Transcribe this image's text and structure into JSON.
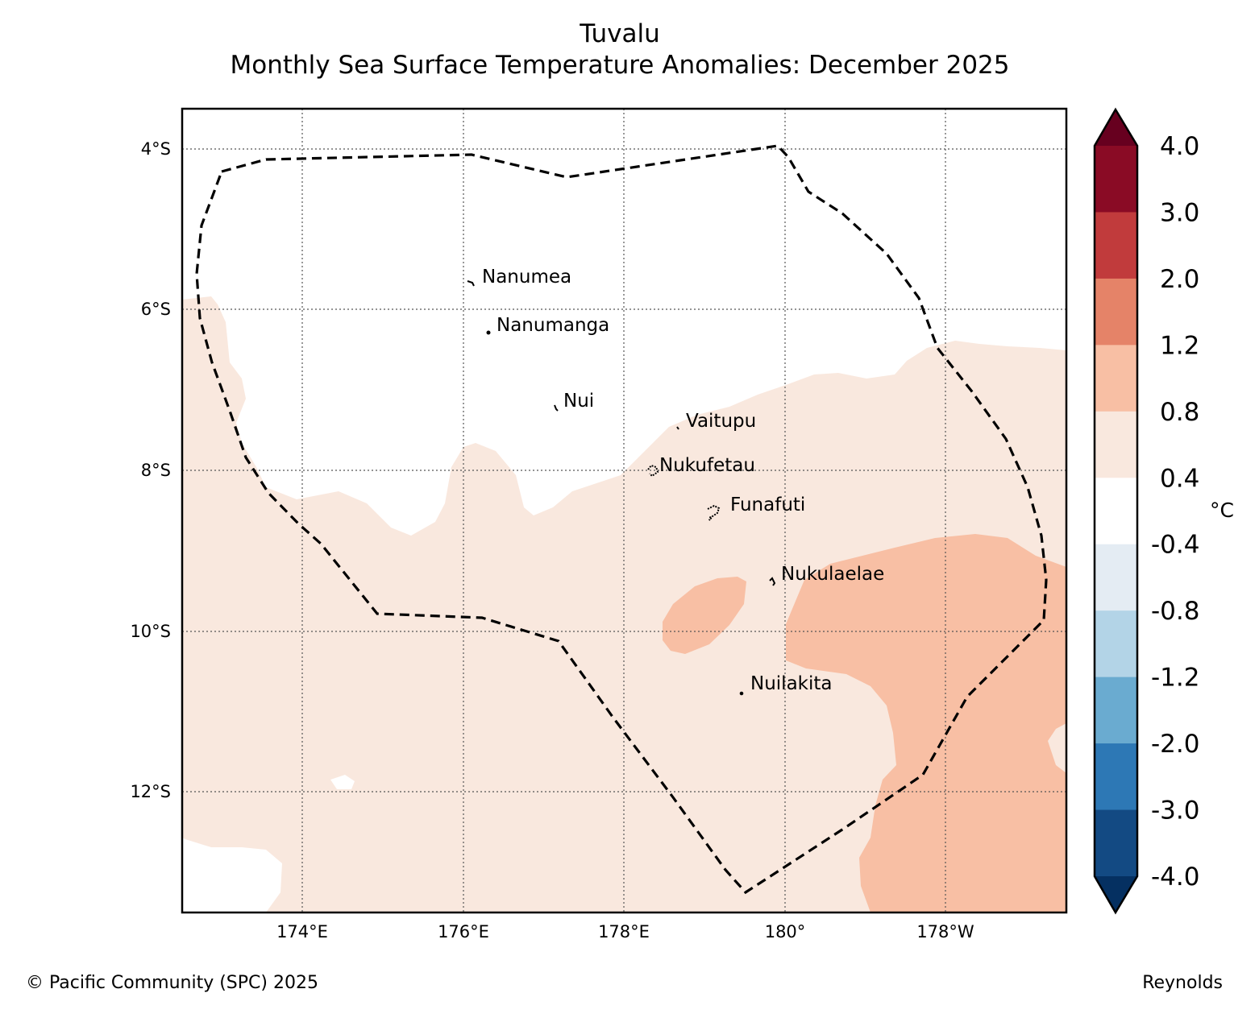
{
  "title": {
    "line1": "Tuvalu",
    "line2": "Monthly Sea Surface Temperature Anomalies: December 2025"
  },
  "map": {
    "lat_labels": [
      "4°S",
      "6°S",
      "8°S",
      "10°S",
      "12°S"
    ],
    "lon_labels": [
      "174°E",
      "176°E",
      "178°E",
      "180°",
      "178°W"
    ],
    "islands": [
      {
        "name": "Nanumea"
      },
      {
        "name": "Nanumanga"
      },
      {
        "name": "Nui"
      },
      {
        "name": "Vaitupu"
      },
      {
        "name": "Nukufetau"
      },
      {
        "name": "Funafuti"
      },
      {
        "name": "Nukulaelae"
      },
      {
        "name": "Nuilakita"
      }
    ]
  },
  "colorbar": {
    "unit": "°C",
    "tick_labels": [
      "4.0",
      "3.0",
      "2.0",
      "1.2",
      "0.8",
      "0.4",
      "-0.4",
      "-0.8",
      "-1.2",
      "-2.0",
      "-3.0",
      "-4.0"
    ],
    "colors": {
      "over": "#67001f",
      "bins": [
        "#8a0b25",
        "#c13b3c",
        "#e58368",
        "#f8bfa4",
        "#f9e8de",
        "#ffffff",
        "#e4ecf3",
        "#b3d4e7",
        "#6aabd0",
        "#2d78b5",
        "#134a83"
      ],
      "under": "#053061"
    }
  },
  "colors": {
    "anomaly_0_4_0_8": "#f9e8de",
    "anomaly_0_8_1_2": "#f8bfa4"
  },
  "footer": {
    "copyright": "© Pacific Community (SPC) 2025",
    "source": "Reynolds"
  }
}
